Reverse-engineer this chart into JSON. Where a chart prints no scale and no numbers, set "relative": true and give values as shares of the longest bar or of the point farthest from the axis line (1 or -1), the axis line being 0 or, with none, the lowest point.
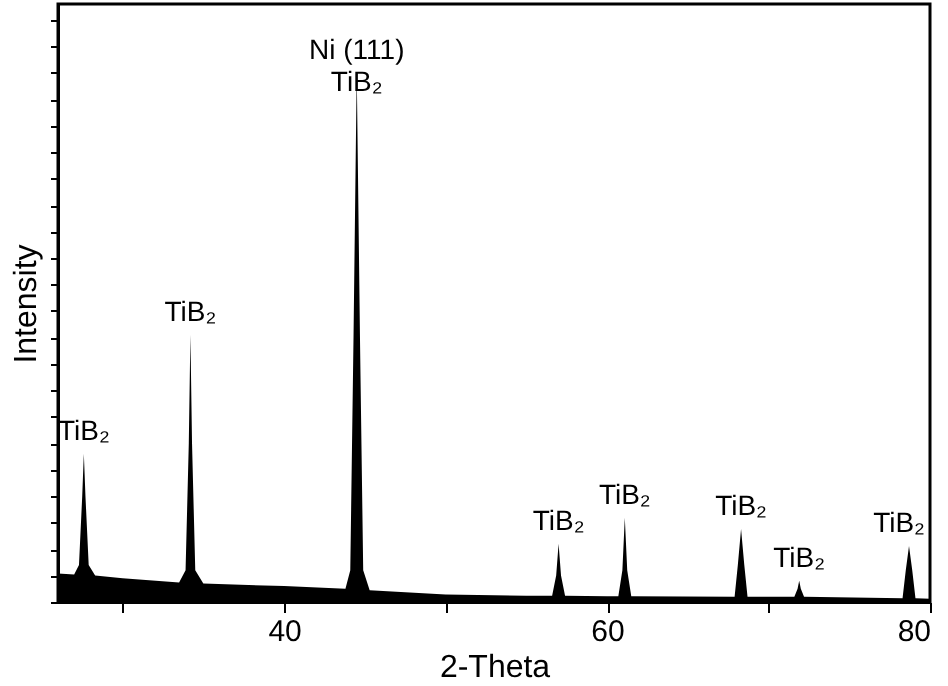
{
  "chart_data": {
    "type": "area",
    "relative": true,
    "xlabel": "2-Theta",
    "ylabel": "Intensity",
    "xlim": [
      26,
      80
    ],
    "xticks": [
      {
        "value": 30,
        "label": null
      },
      40,
      {
        "value": 50,
        "label": null
      },
      60,
      {
        "value": 70,
        "label": null
      },
      80
    ],
    "tick_labels": "x",
    "grid": false,
    "x": [
      26,
      27.0,
      27.3,
      27.5,
      27.6,
      27.7,
      27.9,
      28.3,
      30,
      33.5,
      33.9,
      34.1,
      34.2,
      34.3,
      34.5,
      35,
      40,
      43.8,
      44.1,
      44.3,
      44.5,
      44.7,
      44.9,
      45.3,
      50,
      55,
      56.6,
      56.85,
      57.0,
      57.15,
      57.4,
      60,
      60.7,
      60.95,
      61.1,
      61.25,
      61.5,
      67.9,
      68.1,
      68.3,
      68.5,
      68.7,
      71.6,
      71.8,
      71.9,
      72.0,
      72.2,
      78.3,
      78.5,
      78.7,
      78.9,
      79.1,
      80
    ],
    "series": [
      {
        "color": "#000000",
        "values": [
          0.054,
          0.052,
          0.07,
          0.2,
          0.28,
          0.2,
          0.07,
          0.05,
          0.045,
          0.037,
          0.06,
          0.3,
          0.505,
          0.3,
          0.06,
          0.035,
          0.03,
          0.025,
          0.06,
          0.5,
          1,
          0.5,
          0.06,
          0.022,
          0.014,
          0.012,
          0.012,
          0.05,
          0.11,
          0.05,
          0.012,
          0.011,
          0.011,
          0.06,
          0.159,
          0.06,
          0.011,
          0.01,
          0.07,
          0.138,
          0.07,
          0.01,
          0.01,
          0.025,
          0.04,
          0.025,
          0.01,
          0.007,
          0.06,
          0.106,
          0.06,
          0.007,
          0.006
        ]
      }
    ],
    "annotations": [
      {
        "text": "TiB₂",
        "x": 27.6,
        "y": 0.28
      },
      {
        "text": "TiB₂",
        "x": 34.2,
        "y": 0.505
      },
      {
        "text": "Ni (111)\nTiB₂",
        "x": 44.5,
        "y": 1
      },
      {
        "text": "TiB₂",
        "x": 57.0,
        "y": 0.11
      },
      {
        "text": "TiB₂",
        "x": 61.1,
        "y": 0.159
      },
      {
        "text": "TiB₂",
        "x": 68.3,
        "y": 0.138
      },
      {
        "text": "TiB₂",
        "x": 71.9,
        "y": 0.04
      },
      {
        "text": "TiB₂",
        "x": 78.7,
        "y": 0.106
      }
    ]
  }
}
